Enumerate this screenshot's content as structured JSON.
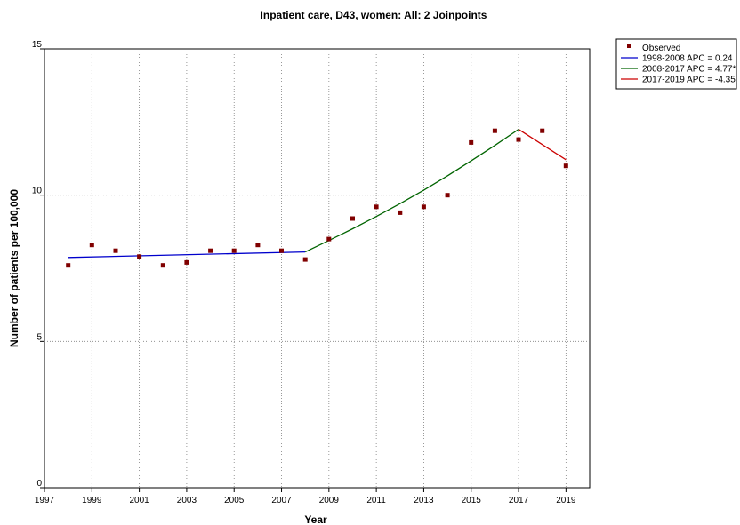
{
  "chart_data": {
    "type": "line",
    "title": "Inpatient care, D43, women: All: 2 Joinpoints",
    "xlabel": "Year",
    "ylabel": "Number of patients per 100,000",
    "xlim": [
      1997,
      2020
    ],
    "ylim": [
      0,
      15
    ],
    "x_ticks": [
      "1997",
      "1999",
      "2001",
      "2003",
      "2005",
      "2007",
      "2009",
      "2011",
      "2013",
      "2015",
      "2017",
      "2019"
    ],
    "y_ticks": [
      "0",
      "5",
      "10",
      "15"
    ],
    "grid": true,
    "legend_position": "top-right, outside plot",
    "observed": {
      "name": "Observed",
      "color": "#800000",
      "x": [
        1998,
        1999,
        2000,
        2001,
        2002,
        2003,
        2004,
        2005,
        2006,
        2007,
        2008,
        2009,
        2010,
        2011,
        2012,
        2013,
        2014,
        2015,
        2016,
        2017,
        2018,
        2019
      ],
      "y": [
        7.6,
        8.3,
        8.1,
        7.9,
        7.6,
        7.7,
        8.1,
        8.1,
        8.3,
        8.1,
        7.8,
        8.5,
        9.2,
        9.6,
        9.4,
        9.6,
        10.0,
        11.8,
        12.2,
        11.9,
        12.2,
        11.0
      ]
    },
    "series": [
      {
        "name": "1998-2008 APC =  0.24",
        "color": "#0000cc",
        "x": [
          1998,
          2008
        ],
        "y": [
          7.87,
          8.06
        ]
      },
      {
        "name": "2008-2017 APC = 4.77*",
        "color": "#006400",
        "x": [
          2008,
          2009,
          2010,
          2011,
          2012,
          2013,
          2014,
          2015,
          2016,
          2017
        ],
        "y": [
          8.06,
          8.45,
          8.85,
          9.27,
          9.71,
          10.17,
          10.66,
          11.17,
          11.7,
          12.25
        ]
      },
      {
        "name": "2017-2019 APC = -4.35",
        "color": "#cc0000",
        "x": [
          2017,
          2019
        ],
        "y": [
          12.25,
          11.21
        ]
      }
    ]
  }
}
